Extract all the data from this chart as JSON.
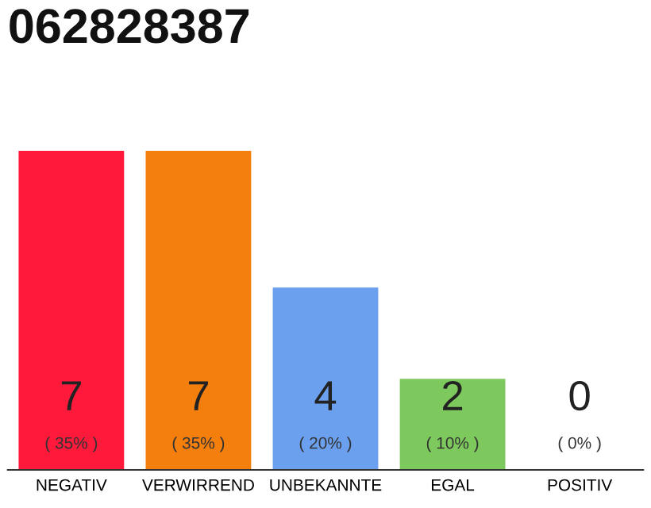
{
  "chart_data": {
    "type": "bar",
    "title": "062828387",
    "categories": [
      "NEGATIV",
      "VERWIRREND",
      "UNBEKANNTE",
      "EGAL",
      "POSITIV"
    ],
    "values": [
      7,
      7,
      4,
      2,
      0
    ],
    "colors": [
      "#ff1a3c",
      "#f57f0d",
      "#6aa0ee",
      "#7dc95e",
      "#e6e6e6"
    ],
    "data_labels": true,
    "annotations": [
      "( 35% )",
      "( 35% )",
      "( 20% )",
      "( 10% )",
      "( 0% )"
    ],
    "grid": false,
    "legend": false
  }
}
